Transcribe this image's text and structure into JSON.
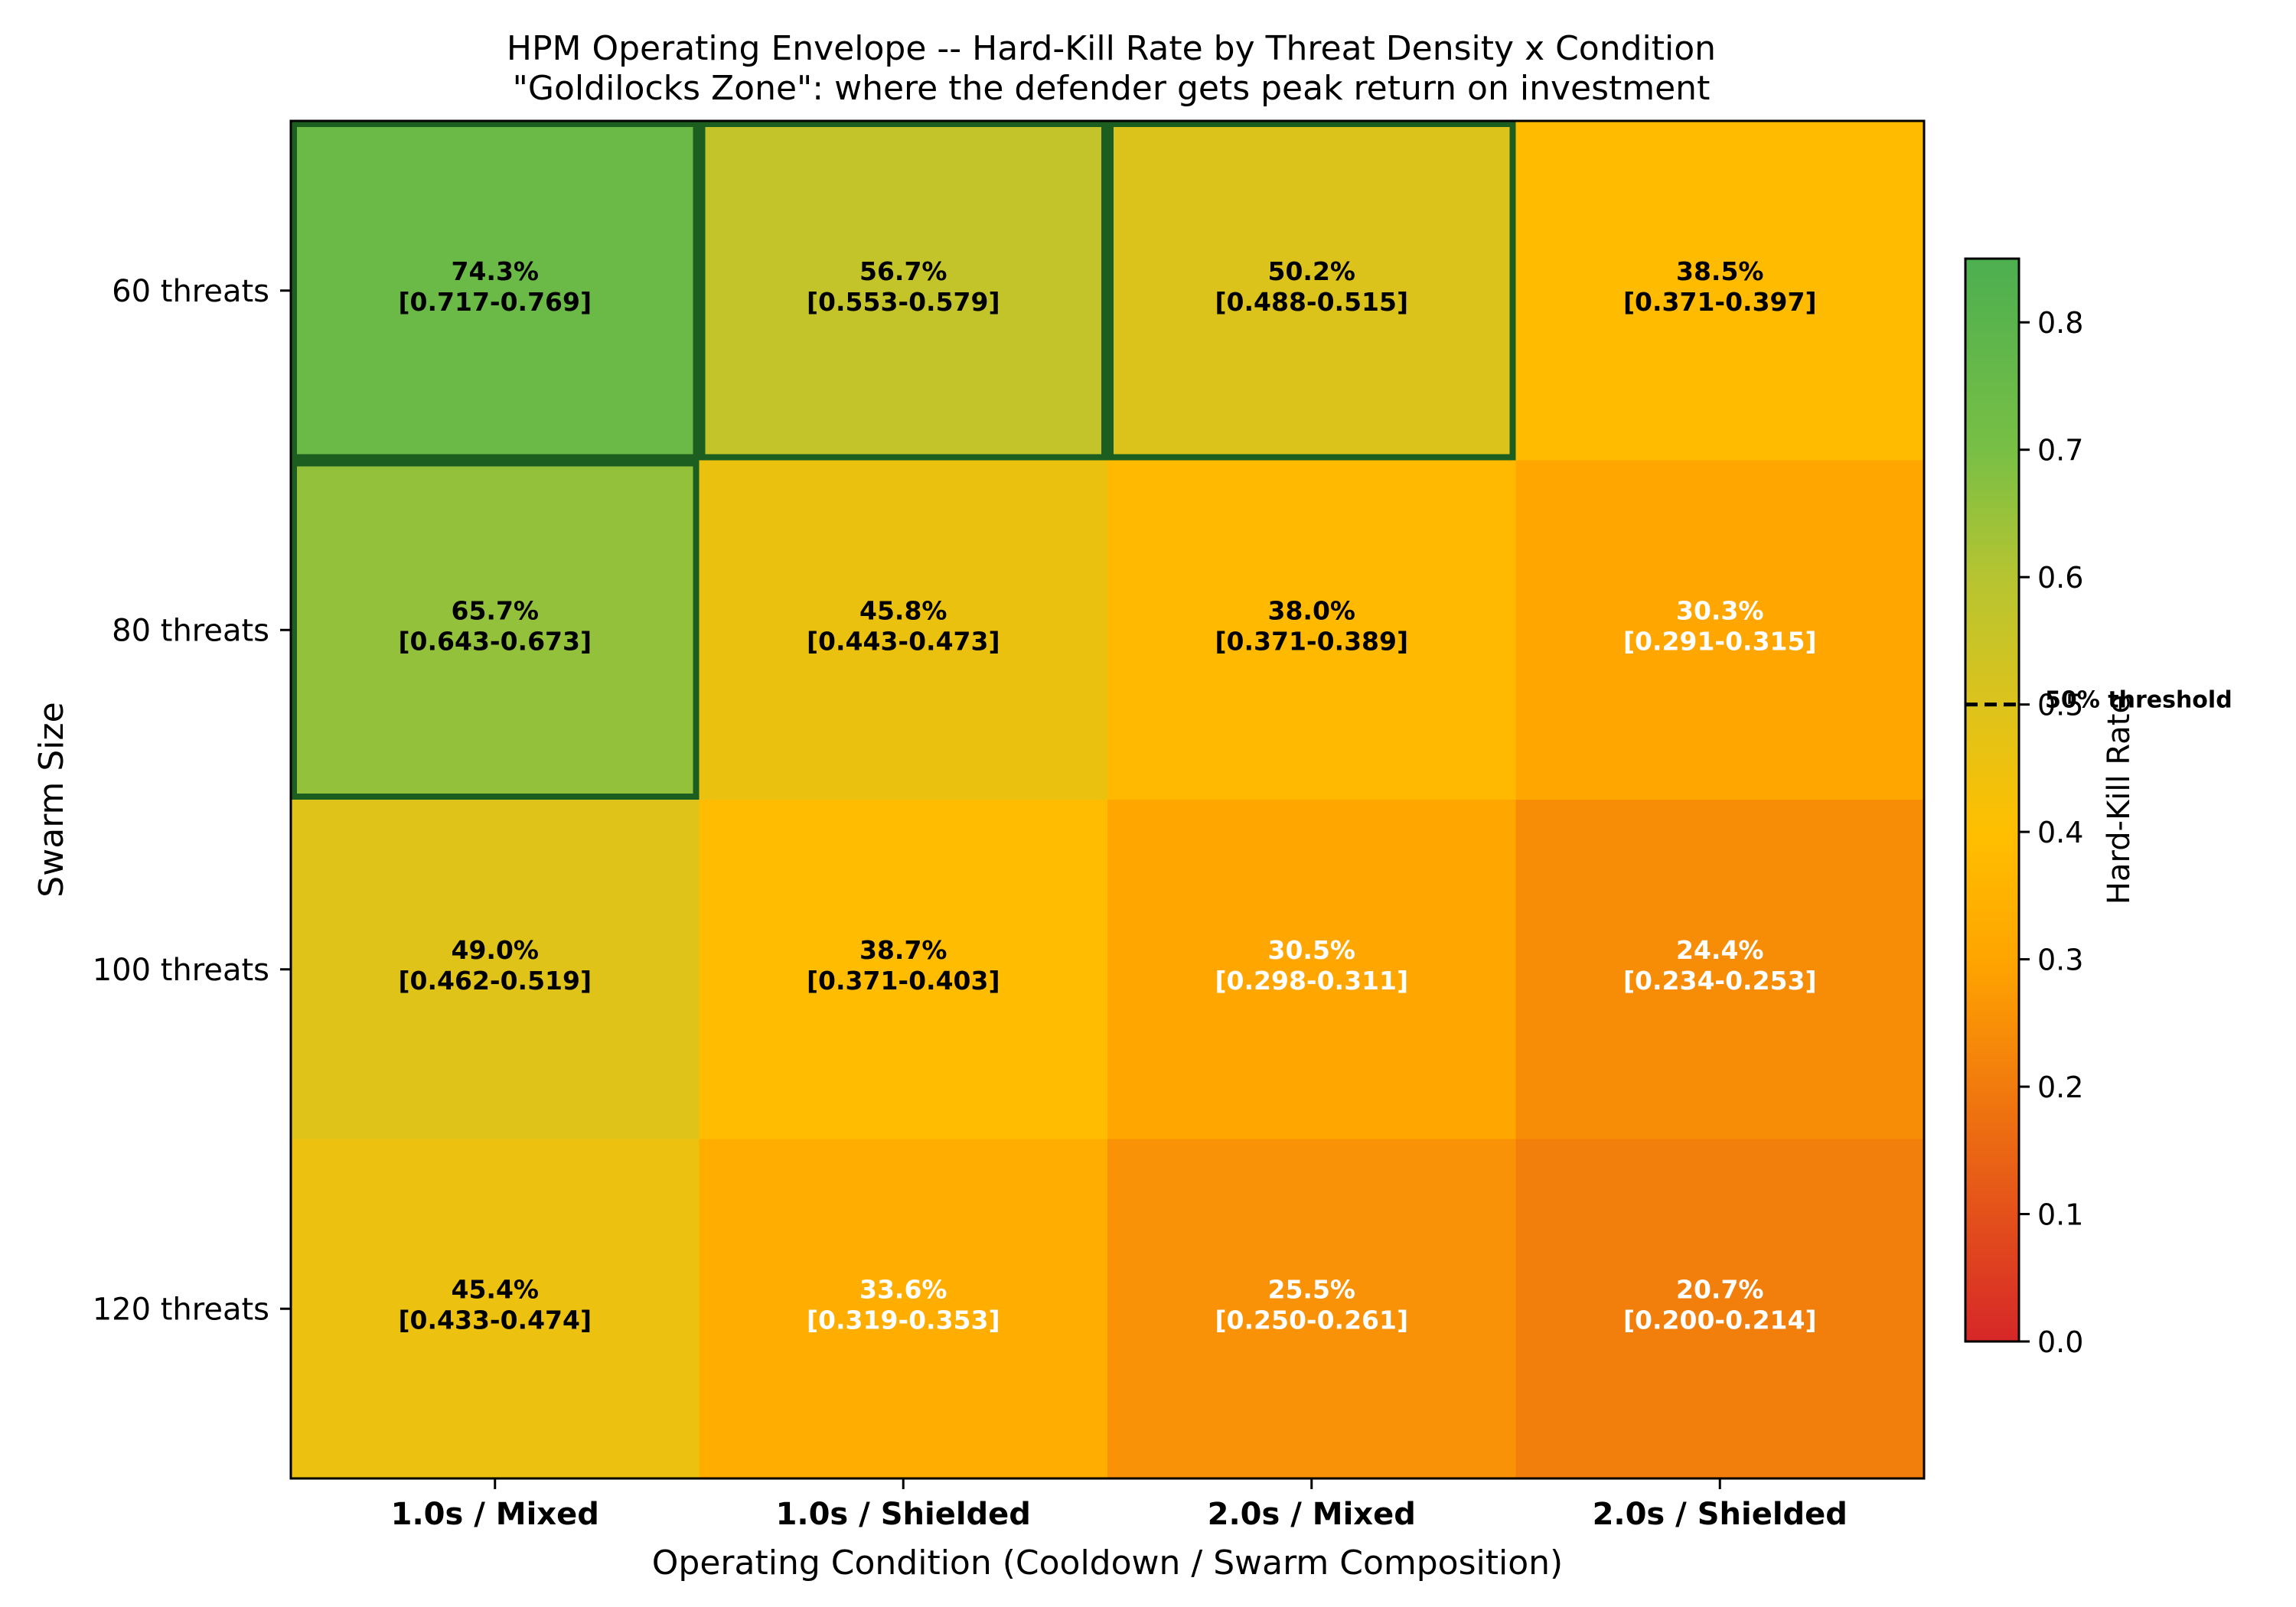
{
  "chart_data": {
    "type": "heatmap",
    "title": "HPM Operating Envelope -- Hard-Kill Rate by Threat Density x Condition",
    "subtitle": "\"Goldilocks Zone\": where the defender gets peak return on investment",
    "xlabel": "Operating Condition (Cooldown / Swarm Composition)",
    "ylabel": "Swarm Size",
    "x_categories": [
      "1.0s / Mixed",
      "1.0s / Shielded",
      "2.0s / Mixed",
      "2.0s / Shielded"
    ],
    "y_categories": [
      "60 threats",
      "80 threats",
      "100 threats",
      "120 threats"
    ],
    "values": [
      [
        0.743,
        0.567,
        0.502,
        0.385
      ],
      [
        0.657,
        0.458,
        0.38,
        0.303
      ],
      [
        0.49,
        0.387,
        0.305,
        0.244
      ],
      [
        0.454,
        0.336,
        0.255,
        0.207
      ]
    ],
    "cell_labels": [
      [
        "74.3%",
        "56.7%",
        "50.2%",
        "38.5%"
      ],
      [
        "65.7%",
        "45.8%",
        "38.0%",
        "30.3%"
      ],
      [
        "49.0%",
        "38.7%",
        "30.5%",
        "24.4%"
      ],
      [
        "45.4%",
        "33.6%",
        "25.5%",
        "20.7%"
      ]
    ],
    "cell_intervals": [
      [
        "[0.717-0.769]",
        "[0.553-0.579]",
        "[0.488-0.515]",
        "[0.371-0.397]"
      ],
      [
        "[0.643-0.673]",
        "[0.443-0.473]",
        "[0.371-0.389]",
        "[0.291-0.315]"
      ],
      [
        "[0.462-0.519]",
        "[0.371-0.403]",
        "[0.298-0.311]",
        "[0.234-0.253]"
      ],
      [
        "[0.433-0.474]",
        "[0.319-0.353]",
        "[0.250-0.261]",
        "[0.200-0.214]"
      ]
    ],
    "highlighted_cells": [
      [
        0,
        0
      ],
      [
        0,
        1
      ],
      [
        0,
        2
      ],
      [
        1,
        0
      ]
    ],
    "colorbar": {
      "label": "Hard-Kill Rate",
      "range": [
        0,
        0.85
      ],
      "ticks": [
        0.0,
        0.1,
        0.2,
        0.3,
        0.4,
        0.5,
        0.6,
        0.7,
        0.8
      ],
      "tick_labels": [
        "0.0",
        "0.1",
        "0.2",
        "0.3",
        "0.4",
        "0.5",
        "0.6",
        "0.7",
        "0.8"
      ],
      "threshold_value": 0.5,
      "threshold_label": "50% threshold",
      "stops": [
        {
          "v": 0.0,
          "color": "#d62728"
        },
        {
          "v": 0.3,
          "color": "#ffa500"
        },
        {
          "v": 0.4,
          "color": "#ffbf00"
        },
        {
          "v": 0.5,
          "color": "#dcc31c"
        },
        {
          "v": 0.6,
          "color": "#b6c431"
        },
        {
          "v": 0.7,
          "color": "#78bf45"
        },
        {
          "v": 0.85,
          "color": "#4caf50"
        }
      ]
    },
    "colors": {
      "highlight_border": "#1b5e20",
      "dark_text": "#000000",
      "light_text": "#ffffff"
    }
  }
}
